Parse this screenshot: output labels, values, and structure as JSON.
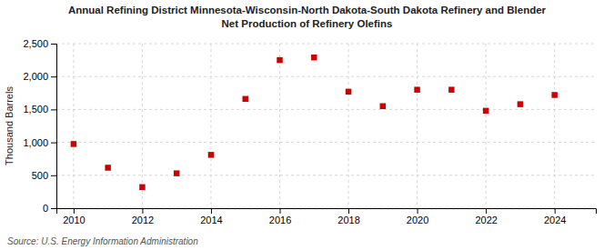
{
  "chart_data": {
    "type": "scatter",
    "title": "Annual Refining District Minnesota-Wisconsin-North Dakota-South Dakota Refinery and Blender",
    "subtitle": "Net Production of Refinery Olefins",
    "ylabel": "Thousand Barrels",
    "annotations": [
      "Source: U.S. Energy Information Administration"
    ],
    "x": [
      2010,
      2011,
      2012,
      2013,
      2014,
      2015,
      2016,
      2017,
      2018,
      2019,
      2020,
      2021,
      2022,
      2023,
      2024
    ],
    "values": [
      975,
      615,
      320,
      530,
      810,
      1660,
      2250,
      2290,
      1770,
      1550,
      1800,
      1800,
      1480,
      1580,
      1720
    ],
    "color": "#cc0000",
    "marker": "square",
    "xlim": [
      2009.5,
      2025.2
    ],
    "xticks": [
      2010,
      2012,
      2014,
      2016,
      2018,
      2020,
      2022,
      2024
    ],
    "ylim": [
      0,
      2500
    ],
    "yticks": [
      0,
      500,
      {
        "value": 1000,
        "label": "1,000"
      },
      {
        "value": 1500,
        "label": "1,500"
      },
      {
        "value": 2000,
        "label": "2,000"
      },
      {
        "value": 2500,
        "label": "2,500"
      }
    ],
    "grid": true
  }
}
